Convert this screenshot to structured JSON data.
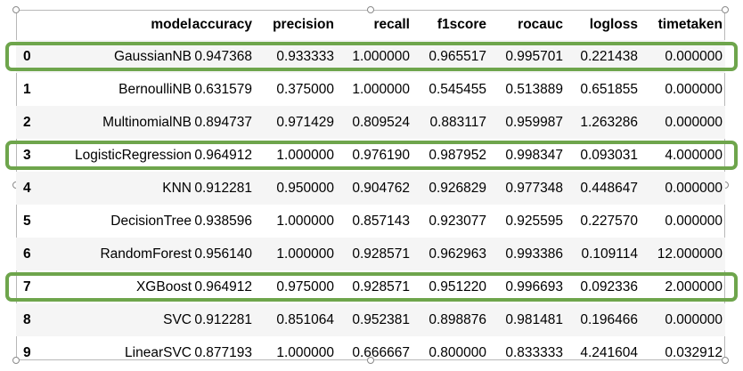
{
  "table": {
    "columns": [
      "model",
      "accuracy",
      "precision",
      "recall",
      "f1score",
      "rocauc",
      "logloss",
      "timetaken"
    ],
    "rows": [
      {
        "index": "0",
        "model": "GaussianNB",
        "accuracy": "0.947368",
        "precision": "0.933333",
        "recall": "1.000000",
        "f1score": "0.965517",
        "rocauc": "0.995701",
        "logloss": "0.221438",
        "timetaken": "0.000000"
      },
      {
        "index": "1",
        "model": "BernoulliNB",
        "accuracy": "0.631579",
        "precision": "0.375000",
        "recall": "1.000000",
        "f1score": "0.545455",
        "rocauc": "0.513889",
        "logloss": "0.651855",
        "timetaken": "0.000000"
      },
      {
        "index": "2",
        "model": "MultinomialNB",
        "accuracy": "0.894737",
        "precision": "0.971429",
        "recall": "0.809524",
        "f1score": "0.883117",
        "rocauc": "0.959987",
        "logloss": "1.263286",
        "timetaken": "0.000000"
      },
      {
        "index": "3",
        "model": "LogisticRegression",
        "accuracy": "0.964912",
        "precision": "1.000000",
        "recall": "0.976190",
        "f1score": "0.987952",
        "rocauc": "0.998347",
        "logloss": "0.093031",
        "timetaken": "4.000000"
      },
      {
        "index": "4",
        "model": "KNN",
        "accuracy": "0.912281",
        "precision": "0.950000",
        "recall": "0.904762",
        "f1score": "0.926829",
        "rocauc": "0.977348",
        "logloss": "0.448647",
        "timetaken": "0.000000"
      },
      {
        "index": "5",
        "model": "DecisionTree",
        "accuracy": "0.938596",
        "precision": "1.000000",
        "recall": "0.857143",
        "f1score": "0.923077",
        "rocauc": "0.925595",
        "logloss": "0.227570",
        "timetaken": "0.000000"
      },
      {
        "index": "6",
        "model": "RandomForest",
        "accuracy": "0.956140",
        "precision": "1.000000",
        "recall": "0.928571",
        "f1score": "0.962963",
        "rocauc": "0.993386",
        "logloss": "0.109114",
        "timetaken": "12.000000"
      },
      {
        "index": "7",
        "model": "XGBoost",
        "accuracy": "0.964912",
        "precision": "0.975000",
        "recall": "0.928571",
        "f1score": "0.951220",
        "rocauc": "0.996693",
        "logloss": "0.092336",
        "timetaken": "2.000000"
      },
      {
        "index": "8",
        "model": "SVC",
        "accuracy": "0.912281",
        "precision": "0.851064",
        "recall": "0.952381",
        "f1score": "0.898876",
        "rocauc": "0.981481",
        "logloss": "0.196466",
        "timetaken": "0.000000"
      },
      {
        "index": "9",
        "model": "LinearSVC",
        "accuracy": "0.877193",
        "precision": "1.000000",
        "recall": "0.666667",
        "f1score": "0.800000",
        "rocauc": "0.833333",
        "logloss": "4.241604",
        "timetaken": "0.032912"
      }
    ]
  },
  "highlighted_rows": [
    "0",
    "3",
    "7"
  ],
  "colors": {
    "highlight_border": "#6ea54c",
    "stripe_background": "#f5f5f5",
    "selection_frame": "#b8b8b8"
  }
}
